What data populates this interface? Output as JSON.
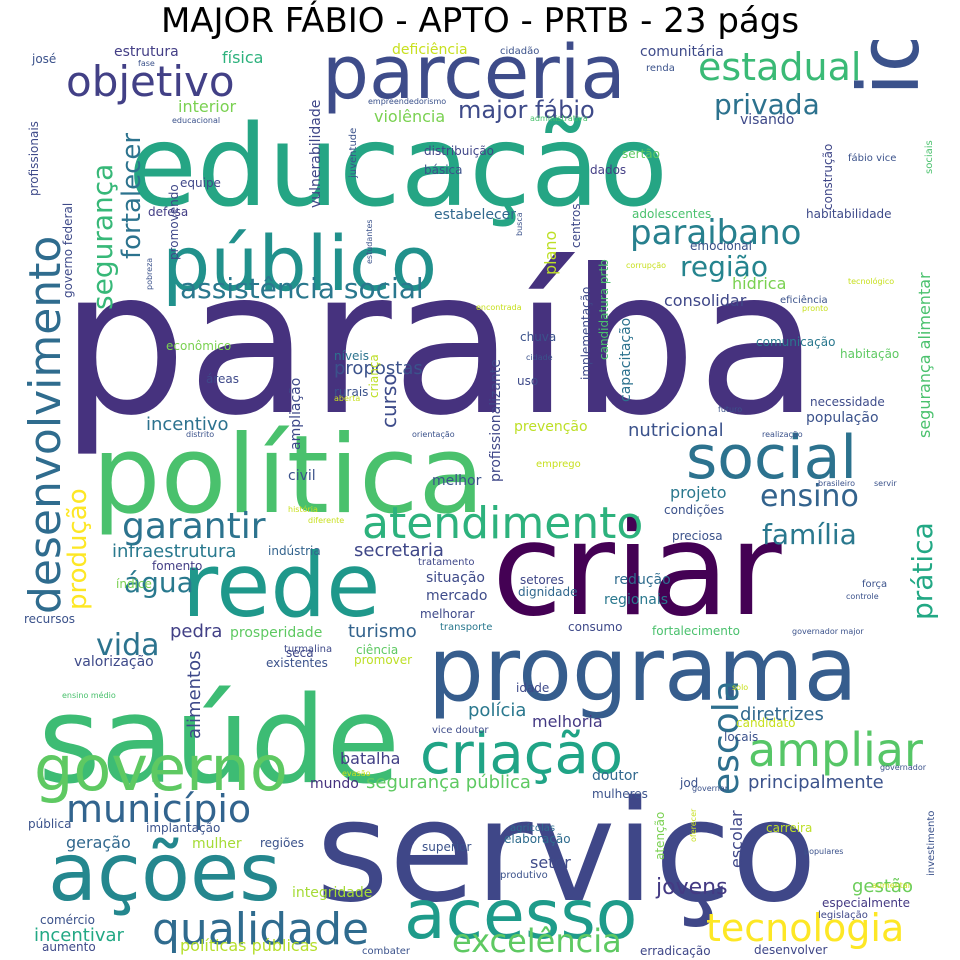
{
  "title": "MAJOR FÁBIO - APTO - PRTB - 23 págs",
  "words": [
    {
      "text": "paraíba",
      "color": "#46327e"
    },
    {
      "text": "educação",
      "color": "#25a584"
    },
    {
      "text": "serviço",
      "color": "#3f4788"
    },
    {
      "text": "política",
      "color": "#4ac16d"
    },
    {
      "text": "criar",
      "color": "#440154"
    },
    {
      "text": "saúde",
      "color": "#3dbc74"
    },
    {
      "text": "programa",
      "color": "#365d8d"
    },
    {
      "text": "rede",
      "color": "#1f988b"
    },
    {
      "text": "idoso",
      "color": "#3b528b"
    },
    {
      "text": "público",
      "color": "#21918c"
    },
    {
      "text": "parceria",
      "color": "#3e4c8a"
    },
    {
      "text": "ações",
      "color": "#24878e"
    },
    {
      "text": "acesso",
      "color": "#1e9b8a"
    },
    {
      "text": "governo",
      "color": "#5ec962"
    },
    {
      "text": "social",
      "color": "#2c728e"
    },
    {
      "text": "atendimento",
      "color": "#2db27d"
    },
    {
      "text": "criação",
      "color": "#20a486"
    },
    {
      "text": "desenvolvimento",
      "color": "#2f6c8e"
    },
    {
      "text": "qualidade",
      "color": "#2f6b8e"
    },
    {
      "text": "objetivo",
      "color": "#424086"
    },
    {
      "text": "ampliar",
      "color": "#56c667"
    },
    {
      "text": "tecnologia",
      "color": "#fde725"
    },
    {
      "text": "escola",
      "color": "#2e6f8e"
    },
    {
      "text": "município",
      "color": "#32648e"
    },
    {
      "text": "garantir",
      "color": "#2c738e"
    },
    {
      "text": "assistência social",
      "color": "#2a788e"
    },
    {
      "text": "paraibano",
      "color": "#27808e"
    },
    {
      "text": "estadual",
      "color": "#3aba76"
    },
    {
      "text": "excelência",
      "color": "#5ec962"
    },
    {
      "text": "ensino",
      "color": "#33638d"
    },
    {
      "text": "família",
      "color": "#2a788e"
    },
    {
      "text": "segurança",
      "color": "#37b878"
    },
    {
      "text": "prática",
      "color": "#22a884"
    },
    {
      "text": "produção",
      "color": "#fde725"
    },
    {
      "text": "região",
      "color": "#25848e"
    },
    {
      "text": "água",
      "color": "#29798e"
    },
    {
      "text": "privada",
      "color": "#2c728e"
    },
    {
      "text": "vida",
      "color": "#2c738e"
    },
    {
      "text": "fortalecer",
      "color": "#2c738e"
    },
    {
      "text": "major fábio",
      "color": "#3e4a89"
    },
    {
      "text": "jovens",
      "color": "#443a83"
    },
    {
      "text": "principalmente",
      "color": "#3b528b"
    },
    {
      "text": "infraestrutura",
      "color": "#29798e"
    },
    {
      "text": "secretaria",
      "color": "#3f4788"
    },
    {
      "text": "diretrizes",
      "color": "#31688e"
    },
    {
      "text": "segurança pública",
      "color": "#5ec962"
    },
    {
      "text": "turismo",
      "color": "#33638d"
    },
    {
      "text": "nutricional",
      "color": "#3b528b"
    },
    {
      "text": "incentivo",
      "color": "#2c728e"
    },
    {
      "text": "propostas",
      "color": "#3b528b"
    },
    {
      "text": "consolidar",
      "color": "#3f4788"
    },
    {
      "text": "melhoria",
      "color": "#443983"
    },
    {
      "text": "gestão",
      "color": "#6ccd5a"
    },
    {
      "text": "segurança alimentar",
      "color": "#4ac16d"
    },
    {
      "text": "curso",
      "color": "#3e4c8a"
    },
    {
      "text": "pedra",
      "color": "#424086"
    },
    {
      "text": "projeto",
      "color": "#2a788e"
    },
    {
      "text": "polícia",
      "color": "#2a788e"
    },
    {
      "text": "batalha",
      "color": "#424086"
    },
    {
      "text": "hídrica",
      "color": "#7ad151"
    },
    {
      "text": "geração",
      "color": "#31688e"
    },
    {
      "text": "mercado",
      "color": "#3e4c8a"
    },
    {
      "text": "situação",
      "color": "#3e4a89"
    },
    {
      "text": "redução",
      "color": "#2f6c8e"
    },
    {
      "text": "regionais",
      "color": "#2a788e"
    },
    {
      "text": "incentivar",
      "color": "#22a884"
    },
    {
      "text": "alimentos",
      "color": "#3e4989"
    },
    {
      "text": "escolar",
      "color": "#3f4788"
    },
    {
      "text": "setor",
      "color": "#3e4a89"
    },
    {
      "text": "mundo",
      "color": "#46327e"
    },
    {
      "text": "doutor",
      "color": "#31688e"
    },
    {
      "text": "vulnerabilidade",
      "color": "#3f4788"
    },
    {
      "text": "mulher",
      "color": "#a5db36"
    },
    {
      "text": "integridade",
      "color": "#a5db36"
    },
    {
      "text": "políticas públicas",
      "color": "#b5de2b"
    },
    {
      "text": "valorização",
      "color": "#3e4a89"
    },
    {
      "text": "prosperidade",
      "color": "#5ec962"
    },
    {
      "text": "ciência",
      "color": "#5ec962"
    },
    {
      "text": "promover",
      "color": "#bddf26"
    },
    {
      "text": "prevenção",
      "color": "#bddf26"
    },
    {
      "text": "civil",
      "color": "#3b528b"
    },
    {
      "text": "melhor",
      "color": "#3b528b"
    },
    {
      "text": "necessidade",
      "color": "#3e4c8a"
    },
    {
      "text": "população",
      "color": "#3b528b"
    },
    {
      "text": "uso",
      "color": "#3e4a89"
    },
    {
      "text": "plano",
      "color": "#bddf26"
    },
    {
      "text": "centros",
      "color": "#3e4989"
    },
    {
      "text": "chuva",
      "color": "#3b528b"
    },
    {
      "text": "estabelecer",
      "color": "#31688e"
    },
    {
      "text": "física",
      "color": "#2db27d"
    },
    {
      "text": "estrutura",
      "color": "#433e85"
    },
    {
      "text": "deficiência",
      "color": "#c8e020"
    },
    {
      "text": "comunitária",
      "color": "#3e4a89"
    },
    {
      "text": "interior",
      "color": "#7ad151"
    },
    {
      "text": "violência",
      "color": "#7ad151"
    },
    {
      "text": "visando",
      "color": "#3e4989"
    },
    {
      "text": "sertão",
      "color": "#5ec962"
    },
    {
      "text": "distribuição",
      "color": "#404688"
    },
    {
      "text": "básica",
      "color": "#3b528b"
    },
    {
      "text": "dados",
      "color": "#433e85"
    },
    {
      "text": "construção",
      "color": "#3f4788"
    },
    {
      "text": "habitabilidade",
      "color": "#3e4a89"
    },
    {
      "text": "adolescentes",
      "color": "#4ac16d"
    },
    {
      "text": "emocional",
      "color": "#3b528b"
    },
    {
      "text": "equipe",
      "color": "#3f4788"
    },
    {
      "text": "defesa",
      "color": "#433e85"
    },
    {
      "text": "promovendo",
      "color": "#3f4788"
    },
    {
      "text": "profissionalizante",
      "color": "#3f4788"
    },
    {
      "text": "implementação",
      "color": "#3e4a89"
    },
    {
      "text": "candidatura prtb",
      "color": "#4ac16d"
    },
    {
      "text": "capacitação",
      "color": "#2c728e"
    },
    {
      "text": "comunicação",
      "color": "#2a788e"
    },
    {
      "text": "habitação",
      "color": "#5ec962"
    },
    {
      "text": "ampliação",
      "color": "#3e4989"
    },
    {
      "text": "criança",
      "color": "#bddf26"
    },
    {
      "text": "rurais",
      "color": "#3b528b"
    },
    {
      "text": "níveis",
      "color": "#2c738e"
    },
    {
      "text": "áreas",
      "color": "#3e4989"
    },
    {
      "text": "econômico",
      "color": "#7ad151"
    },
    {
      "text": "indústria",
      "color": "#33638d"
    },
    {
      "text": "fomento",
      "color": "#433e85"
    },
    {
      "text": "tratamento",
      "color": "#3f4788"
    },
    {
      "text": "condições",
      "color": "#3b528b"
    },
    {
      "text": "preciosa",
      "color": "#3b528b"
    },
    {
      "text": "dignidade",
      "color": "#31688e"
    },
    {
      "text": "setores",
      "color": "#3f4788"
    },
    {
      "text": "fortalecimento",
      "color": "#4ac16d"
    },
    {
      "text": "consumo",
      "color": "#3e4989"
    },
    {
      "text": "transporte",
      "color": "#2a788e"
    },
    {
      "text": "melhorar",
      "color": "#3e4989"
    },
    {
      "text": "recursos",
      "color": "#3b528b"
    },
    {
      "text": "índice",
      "color": "#7ad151"
    },
    {
      "text": "existentes",
      "color": "#3b528b"
    },
    {
      "text": "turmalina",
      "color": "#3e4989"
    },
    {
      "text": "seca",
      "color": "#3f4788"
    },
    {
      "text": "idade",
      "color": "#3e4989"
    },
    {
      "text": "vice doutor",
      "color": "#3e4c8a"
    },
    {
      "text": "locais",
      "color": "#3b528b"
    },
    {
      "text": "candidato",
      "color": "#c8e020"
    },
    {
      "text": "jod",
      "color": "#3b528b"
    },
    {
      "text": "mulheres",
      "color": "#3b528b"
    },
    {
      "text": "atenção",
      "color": "#7ad151"
    },
    {
      "text": "carreira",
      "color": "#bddf26"
    },
    {
      "text": "investimento",
      "color": "#3b528b"
    },
    {
      "text": "especialmente",
      "color": "#443983"
    },
    {
      "text": "legislação",
      "color": "#3f4788"
    },
    {
      "text": "desenvolver",
      "color": "#3f4788"
    },
    {
      "text": "erradicação",
      "color": "#3f4788"
    },
    {
      "text": "combater",
      "color": "#3b528b"
    },
    {
      "text": "aumento",
      "color": "#3e4989"
    },
    {
      "text": "comércio",
      "color": "#3b528b"
    },
    {
      "text": "produtivo",
      "color": "#3b528b"
    },
    {
      "text": "superior",
      "color": "#3b528b"
    },
    {
      "text": "elaboração",
      "color": "#2f6c8e"
    },
    {
      "text": "agrícolas",
      "color": "#2f6c8e"
    },
    {
      "text": "regiões",
      "color": "#3b528b"
    },
    {
      "text": "implantação",
      "color": "#3b528b"
    },
    {
      "text": "pública",
      "color": "#3b528b"
    },
    {
      "text": "governo federal",
      "color": "#3e4a89"
    },
    {
      "text": "profissionais",
      "color": "#3e4a89"
    },
    {
      "text": "josé",
      "color": "#3b528b"
    },
    {
      "text": "fase",
      "color": "#3b528b"
    },
    {
      "text": "educacional",
      "color": "#3b528b"
    },
    {
      "text": "juventude",
      "color": "#3b528b"
    },
    {
      "text": "empreendedorismo",
      "color": "#3b528b"
    },
    {
      "text": "administrativa",
      "color": "#4ac16d"
    },
    {
      "text": "cidadão",
      "color": "#3b528b"
    },
    {
      "text": "renda",
      "color": "#3b528b"
    },
    {
      "text": "fábio vice",
      "color": "#3b528b"
    },
    {
      "text": "sociais",
      "color": "#4ac16d"
    },
    {
      "text": "pobreza",
      "color": "#3b528b"
    },
    {
      "text": "estudantes",
      "color": "#3b528b"
    },
    {
      "text": "busca",
      "color": "#3b528b"
    },
    {
      "text": "corrupção",
      "color": "#c8e020"
    },
    {
      "text": "tecnológico",
      "color": "#c8e020"
    },
    {
      "text": "eficiência",
      "color": "#3b528b"
    },
    {
      "text": "pronto",
      "color": "#c8e020"
    },
    {
      "text": "encontrada",
      "color": "#c8e020"
    },
    {
      "text": "cidade",
      "color": "#3b528b"
    },
    {
      "text": "aberta",
      "color": "#c8e020"
    },
    {
      "text": "futuro",
      "color": "#3b528b"
    },
    {
      "text": "realização",
      "color": "#3b528b"
    },
    {
      "text": "orientação",
      "color": "#3b528b"
    },
    {
      "text": "distrito",
      "color": "#3b528b"
    },
    {
      "text": "emprego",
      "color": "#c8e020"
    },
    {
      "text": "brasileiro",
      "color": "#3b528b"
    },
    {
      "text": "servir",
      "color": "#3b528b"
    },
    {
      "text": "história",
      "color": "#c8e020"
    },
    {
      "text": "diferente",
      "color": "#c8e020"
    },
    {
      "text": "força",
      "color": "#3b528b"
    },
    {
      "text": "controle",
      "color": "#3b528b"
    },
    {
      "text": "governador major",
      "color": "#3b528b"
    },
    {
      "text": "solo",
      "color": "#c8e020"
    },
    {
      "text": "ensino médio",
      "color": "#4ac16d"
    },
    {
      "text": "evasão",
      "color": "#c8e020"
    },
    {
      "text": "governar",
      "color": "#3b528b"
    },
    {
      "text": "oferecer",
      "color": "#c8e020"
    },
    {
      "text": "populares",
      "color": "#3b528b"
    },
    {
      "text": "aumentar",
      "color": "#c8e020"
    },
    {
      "text": "governador",
      "color": "#3b528b"
    }
  ]
}
